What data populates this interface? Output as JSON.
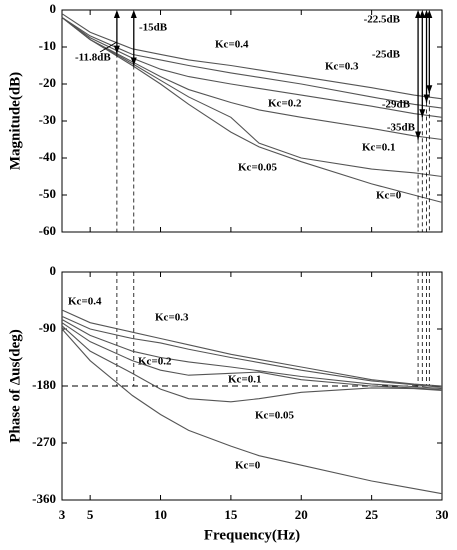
{
  "chart_data": [
    {
      "type": "line",
      "ylabel": "Magnitude(dB)",
      "x": [
        3,
        5,
        8,
        10,
        12,
        15,
        17,
        20,
        25,
        28,
        30
      ],
      "xlim": [
        3,
        30
      ],
      "xticks": [
        3,
        5,
        10,
        15,
        20,
        25,
        30
      ],
      "ylim": [
        -60,
        0
      ],
      "yticks": [
        0,
        -10,
        -20,
        -30,
        -40,
        -50,
        -60
      ],
      "grid": false,
      "series": [
        {
          "name": "Kc=0.4",
          "color": "#555555",
          "values": [
            -1,
            -6,
            -10.5,
            -12,
            -13.5,
            -15,
            -16.2,
            -18,
            -21,
            -23,
            -24
          ]
        },
        {
          "name": "Kc=0.3",
          "color": "#555555",
          "values": [
            -2,
            -7,
            -12,
            -13.5,
            -15,
            -17,
            -18.2,
            -20,
            -23.5,
            -25.5,
            -26.5
          ]
        },
        {
          "name": "Kc=0.2",
          "color": "#555555",
          "values": [
            -2,
            -7.5,
            -13,
            -16,
            -18,
            -20,
            -21.2,
            -23,
            -26,
            -28,
            -29
          ]
        },
        {
          "name": "Kc=0.1",
          "color": "#555555",
          "values": [
            -2,
            -8,
            -14,
            -18,
            -21.5,
            -25,
            -27,
            -29,
            -32,
            -34,
            -35
          ]
        },
        {
          "name": "Kc=0.05",
          "color": "#555555",
          "values": [
            -2,
            -8,
            -14.5,
            -19,
            -23.5,
            -29,
            -36,
            -40,
            -43,
            -44,
            -45
          ]
        },
        {
          "name": "Kc=0",
          "color": "#555555",
          "values": [
            -2,
            -8,
            -15,
            -20,
            -25.5,
            -33,
            -37,
            -41,
            -47,
            -50,
            -52
          ]
        }
      ],
      "arrows": {
        "x": [
          6.9,
          8.1,
          29.1,
          28.9,
          28.6,
          28.3
        ],
        "values": [
          -11.8,
          -15,
          -22.5,
          -25,
          -29,
          -35
        ],
        "value_labels": [
          "-11.8dB",
          "-15dB",
          "-22.5dB",
          "-25dB",
          "-29dB",
          "-35dB"
        ]
      }
    },
    {
      "type": "line",
      "ylabel": "Phase of Δus(deg)",
      "xlabel": "Frequency(Hz)",
      "x": [
        3,
        5,
        8,
        10,
        12,
        15,
        17,
        20,
        25,
        28,
        30
      ],
      "xlim": [
        3,
        30
      ],
      "xticks": [
        3,
        5,
        10,
        15,
        20,
        25,
        30
      ],
      "ylim": [
        -360,
        0
      ],
      "yticks": [
        0,
        -90,
        -180,
        -270,
        -360
      ],
      "grid": false,
      "hline": -180,
      "series": [
        {
          "name": "Kc=0.4",
          "color": "#555555",
          "values": [
            -60,
            -80,
            -95,
            -105,
            -115,
            -130,
            -138,
            -150,
            -170,
            -177,
            -180
          ]
        },
        {
          "name": "Kc=0.3",
          "color": "#555555",
          "values": [
            -70,
            -90,
            -105,
            -112,
            -122,
            -135,
            -143,
            -155,
            -172,
            -178,
            -182
          ]
        },
        {
          "name": "Kc=0.2",
          "color": "#555555",
          "values": [
            -75,
            -100,
            -125,
            -135,
            -142,
            -150,
            -156,
            -165,
            -177,
            -181,
            -184
          ]
        },
        {
          "name": "Kc=0.1",
          "color": "#555555",
          "values": [
            -80,
            -110,
            -140,
            -155,
            -163,
            -160,
            -158,
            -170,
            -180,
            -183,
            -186
          ]
        },
        {
          "name": "Kc=0.05",
          "color": "#555555",
          "values": [
            -85,
            -125,
            -160,
            -185,
            -200,
            -205,
            -200,
            -190,
            -183,
            -184,
            -187
          ]
        },
        {
          "name": "Kc=0",
          "color": "#555555",
          "values": [
            -90,
            -140,
            -195,
            -225,
            -250,
            -275,
            -290,
            -305,
            -330,
            -342,
            -350
          ]
        }
      ]
    }
  ]
}
